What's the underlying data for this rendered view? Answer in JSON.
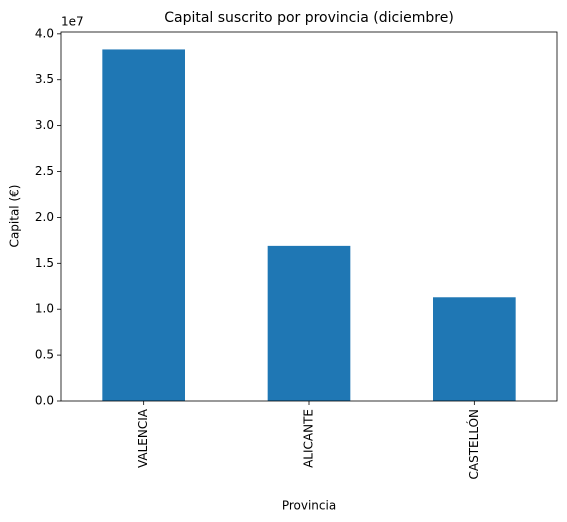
{
  "chart_data": {
    "type": "bar",
    "title": "Capital suscrito por provincia (diciembre)",
    "x_label": "Provincia",
    "y_label": "Capital (€)",
    "y_offset_text": "1e7",
    "categories": [
      "VALENCIA",
      "ALICANTE",
      "CASTELLÓN"
    ],
    "values": [
      38300000,
      16900000,
      11300000
    ],
    "color": "#1f77b4",
    "ylim": [
      0,
      40200000
    ],
    "yticks": [
      {
        "value": 0,
        "label": "0.0"
      },
      {
        "value": 5000000,
        "label": "0.5"
      },
      {
        "value": 10000000,
        "label": "1.0"
      },
      {
        "value": 15000000,
        "label": "1.5"
      },
      {
        "value": 20000000,
        "label": "2.0"
      },
      {
        "value": 25000000,
        "label": "2.5"
      },
      {
        "value": 30000000,
        "label": "3.0"
      },
      {
        "value": 35000000,
        "label": "3.5"
      },
      {
        "value": 40000000,
        "label": "4.0"
      }
    ],
    "grid": false
  }
}
